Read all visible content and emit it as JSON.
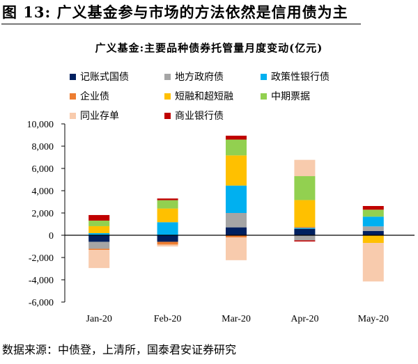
{
  "figure_title": "图 13:  广义基金参与市场的方法依然是信用债为主",
  "source": "数据来源：中债登，上清所，国泰君安证券研究",
  "chart_data": {
    "type": "bar",
    "stacked": true,
    "title": "广义基金:主要品种债券托管量月度变动(亿元)",
    "categories": [
      "Jan-20",
      "Feb-20",
      "Mar-20",
      "Apr-20",
      "May-20"
    ],
    "ylim": [
      -6000,
      10000
    ],
    "yticks": [
      -6000,
      -4000,
      -2000,
      0,
      2000,
      4000,
      6000,
      8000,
      10000
    ],
    "ytick_labels": [
      "-6,000",
      "-4,000",
      "-2,000",
      "0",
      "2,000",
      "4,000",
      "6,000",
      "8,000",
      "10,000"
    ],
    "grid": false,
    "legend_position": "top",
    "series": [
      {
        "name": "记账式国债",
        "color": "#002060",
        "values": [
          -590,
          -590,
          710,
          580,
          375
        ]
      },
      {
        "name": "地方政府债",
        "color": "#A5A5A5",
        "values": [
          -625,
          0,
          1290,
          -460,
          420
        ]
      },
      {
        "name": "政策性银行债",
        "color": "#00B0F0",
        "values": [
          190,
          1170,
          2460,
          80,
          875
        ]
      },
      {
        "name": "企业债",
        "color": "#ED7D31",
        "values": [
          -100,
          -250,
          -200,
          80,
          0
        ]
      },
      {
        "name": "短融和超短融",
        "color": "#FFC000",
        "values": [
          625,
          1230,
          2710,
          2420,
          -690
        ]
      },
      {
        "name": "中期票据",
        "color": "#92D050",
        "values": [
          500,
          750,
          1420,
          2150,
          625
        ]
      },
      {
        "name": "同业存单",
        "color": "#F8CBAD",
        "values": [
          -1630,
          -170,
          -2040,
          1460,
          -3460
        ]
      },
      {
        "name": "商业银行债",
        "color": "#C00000",
        "values": [
          500,
          150,
          350,
          -100,
          330
        ]
      }
    ]
  }
}
